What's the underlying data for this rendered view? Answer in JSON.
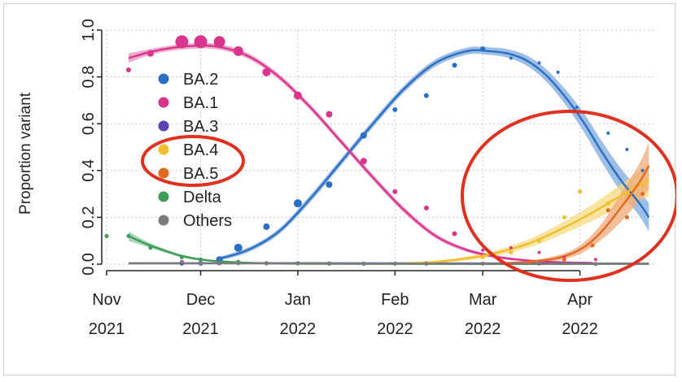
{
  "chart_data": {
    "type": "scatter",
    "title": "",
    "xlabel": "",
    "ylabel": "Proportion variant",
    "ylim": [
      0,
      1
    ],
    "xlim_days": [
      0,
      175
    ],
    "x_unit": "days since 1 Nov 2021",
    "y_ticks": [
      "0.0",
      "0.2",
      "0.4",
      "0.6",
      "0.8",
      "1.0"
    ],
    "y_tick_values": [
      0,
      0.2,
      0.4,
      0.6,
      0.8,
      1.0
    ],
    "x_ticks": [
      {
        "month": "Nov",
        "year": "2021",
        "day": 0
      },
      {
        "month": "Dec",
        "year": "2021",
        "day": 30
      },
      {
        "month": "Jan",
        "year": "2022",
        "day": 61
      },
      {
        "month": "Feb",
        "year": "2022",
        "day": 92
      },
      {
        "month": "Mar",
        "year": "2022",
        "day": 120
      },
      {
        "month": "Apr",
        "year": "2022",
        "day": 151
      }
    ],
    "legend_position": "upper-left",
    "series": [
      {
        "name": "BA.2",
        "color": "#2a6fc4",
        "band": "#7fa8dc",
        "points": [
          [
            24,
            0.001,
            1
          ],
          [
            30,
            0.004,
            1
          ],
          [
            36,
            0.02,
            1
          ],
          [
            42,
            0.07,
            1
          ],
          [
            51,
            0.16,
            1
          ],
          [
            61,
            0.26,
            1
          ],
          [
            71,
            0.34,
            1
          ],
          [
            82,
            0.55,
            1
          ],
          [
            92,
            0.66,
            1
          ],
          [
            102,
            0.72,
            1
          ],
          [
            111,
            0.85,
            1
          ],
          [
            120,
            0.92,
            1
          ],
          [
            129,
            0.88,
            1
          ],
          [
            138,
            0.86,
            1
          ],
          [
            144,
            0.82,
            1
          ],
          [
            150,
            0.67,
            1
          ],
          [
            160,
            0.56,
            1
          ],
          [
            166,
            0.49,
            1
          ],
          [
            171,
            0.4,
            1
          ]
        ],
        "curve": [
          [
            35,
            0.02
          ],
          [
            45,
            0.06
          ],
          [
            55,
            0.14
          ],
          [
            65,
            0.28
          ],
          [
            75,
            0.44
          ],
          [
            85,
            0.6
          ],
          [
            95,
            0.75
          ],
          [
            105,
            0.86
          ],
          [
            115,
            0.91
          ],
          [
            122,
            0.91
          ],
          [
            128,
            0.9
          ],
          [
            134,
            0.87
          ],
          [
            140,
            0.81
          ],
          [
            146,
            0.72
          ],
          [
            152,
            0.61
          ],
          [
            158,
            0.48
          ],
          [
            164,
            0.36
          ],
          [
            170,
            0.26
          ],
          [
            173,
            0.2
          ]
        ],
        "curve_halfwidth": [
          0.008,
          0.01,
          0.012,
          0.015,
          0.015,
          0.015,
          0.015,
          0.015,
          0.015,
          0.016,
          0.018,
          0.022,
          0.026,
          0.032,
          0.04,
          0.045,
          0.05,
          0.055,
          0.06
        ]
      },
      {
        "name": "BA.1",
        "color": "#d9358c",
        "band": "#eb8fbd",
        "points": [
          [
            7,
            0.83,
            1
          ],
          [
            14,
            0.9,
            1
          ],
          [
            24,
            0.95,
            1
          ],
          [
            30,
            0.95,
            1
          ],
          [
            36,
            0.95,
            1
          ],
          [
            42,
            0.91,
            1
          ],
          [
            51,
            0.82,
            1
          ],
          [
            61,
            0.72,
            1
          ],
          [
            71,
            0.64,
            1
          ],
          [
            82,
            0.44,
            1
          ],
          [
            92,
            0.31,
            1
          ],
          [
            102,
            0.24,
            1
          ],
          [
            111,
            0.13,
            1
          ],
          [
            120,
            0.06,
            1
          ],
          [
            129,
            0.07,
            1
          ],
          [
            138,
            0.05,
            1
          ],
          [
            146,
            0.03,
            1
          ],
          [
            156,
            0.02,
            1
          ]
        ],
        "curve": [
          [
            7,
            0.88
          ],
          [
            15,
            0.91
          ],
          [
            25,
            0.93
          ],
          [
            35,
            0.93
          ],
          [
            45,
            0.89
          ],
          [
            55,
            0.8
          ],
          [
            65,
            0.67
          ],
          [
            75,
            0.52
          ],
          [
            85,
            0.37
          ],
          [
            95,
            0.23
          ],
          [
            105,
            0.12
          ],
          [
            115,
            0.06
          ],
          [
            125,
            0.03
          ],
          [
            135,
            0.015
          ],
          [
            145,
            0.008
          ],
          [
            155,
            0.005
          ]
        ],
        "curve_halfwidth": [
          0.02,
          0.012,
          0.012,
          0.012,
          0.012,
          0.012,
          0.012,
          0.012,
          0.012,
          0.012,
          0.01,
          0.008,
          0.006,
          0.005,
          0.004,
          0.004
        ]
      },
      {
        "name": "BA.3",
        "color": "#5b3fb5",
        "band": "#9a88d4",
        "points": [
          [
            24,
            0.003,
            1
          ],
          [
            36,
            0.003,
            1
          ],
          [
            51,
            0.004,
            1
          ],
          [
            61,
            0.004,
            1
          ],
          [
            71,
            0.003,
            1
          ],
          [
            82,
            0.002,
            1
          ]
        ],
        "curve": [
          [
            7,
            0.003
          ],
          [
            60,
            0.004
          ],
          [
            120,
            0.003
          ],
          [
            173,
            0.002
          ]
        ],
        "curve_halfwidth": [
          0.002,
          0.002,
          0.002,
          0.002
        ]
      },
      {
        "name": "BA.4",
        "color": "#f2bd2c",
        "band": "#f7d980",
        "points": [
          [
            120,
            0.03,
            1
          ],
          [
            129,
            0.05,
            1
          ],
          [
            138,
            0.1,
            1
          ],
          [
            146,
            0.2,
            1
          ],
          [
            151,
            0.31,
            1
          ],
          [
            160,
            0.26,
            1
          ],
          [
            166,
            0.3,
            1
          ],
          [
            171,
            0.34,
            1
          ]
        ],
        "curve": [
          [
            95,
            0.003
          ],
          [
            105,
            0.01
          ],
          [
            115,
            0.025
          ],
          [
            125,
            0.05
          ],
          [
            135,
            0.09
          ],
          [
            145,
            0.15
          ],
          [
            155,
            0.22
          ],
          [
            165,
            0.3
          ],
          [
            173,
            0.36
          ]
        ],
        "curve_halfwidth": [
          0.003,
          0.005,
          0.008,
          0.012,
          0.018,
          0.025,
          0.035,
          0.05,
          0.07
        ]
      },
      {
        "name": "BA.5",
        "color": "#e06a22",
        "band": "#f0a877",
        "points": [
          [
            135,
            0.01,
            1
          ],
          [
            146,
            0.02,
            1
          ],
          [
            155,
            0.08,
            1
          ],
          [
            160,
            0.23,
            1
          ],
          [
            166,
            0.2,
            1
          ],
          [
            171,
            0.3,
            1
          ]
        ],
        "curve": [
          [
            125,
            0.004
          ],
          [
            135,
            0.01
          ],
          [
            145,
            0.03
          ],
          [
            152,
            0.07
          ],
          [
            158,
            0.14
          ],
          [
            164,
            0.24
          ],
          [
            170,
            0.35
          ],
          [
            173,
            0.42
          ]
        ],
        "curve_halfwidth": [
          0.003,
          0.006,
          0.012,
          0.02,
          0.035,
          0.06,
          0.08,
          0.1
        ]
      },
      {
        "name": "Delta",
        "color": "#3e9c5b",
        "band": "#8cc9a0",
        "points": [
          [
            0,
            0.12,
            1
          ],
          [
            7,
            0.12,
            1
          ],
          [
            14,
            0.07,
            1
          ],
          [
            24,
            0.03,
            1
          ],
          [
            30,
            0.02,
            1
          ],
          [
            36,
            0.01,
            1
          ],
          [
            42,
            0.01,
            1
          ]
        ],
        "curve": [
          [
            7,
            0.12
          ],
          [
            12,
            0.09
          ],
          [
            18,
            0.06
          ],
          [
            24,
            0.035
          ],
          [
            30,
            0.02
          ],
          [
            36,
            0.012
          ],
          [
            45,
            0.006
          ],
          [
            60,
            0.002
          ],
          [
            90,
            0.001
          ],
          [
            173,
            0.001
          ]
        ],
        "curve_halfwidth": [
          0.02,
          0.012,
          0.008,
          0.006,
          0.005,
          0.004,
          0.003,
          0.002,
          0.001,
          0.001
        ]
      },
      {
        "name": "Others",
        "color": "#7a7a7a",
        "band": "#b8b8b8",
        "points": [
          [
            24,
            0.01,
            1
          ],
          [
            30,
            0.005,
            1
          ],
          [
            36,
            0.004,
            1
          ],
          [
            42,
            0.004,
            1
          ],
          [
            51,
            0.003,
            1
          ],
          [
            61,
            0.003,
            1
          ],
          [
            71,
            0.002,
            1
          ],
          [
            82,
            0.002,
            1
          ],
          [
            92,
            0.002,
            1
          ],
          [
            102,
            0.002,
            1
          ],
          [
            120,
            0.002,
            1
          ],
          [
            138,
            0.002,
            1
          ],
          [
            156,
            0.001,
            1
          ]
        ],
        "curve": [
          [
            7,
            0.004
          ],
          [
            60,
            0.003
          ],
          [
            120,
            0.002
          ],
          [
            173,
            0.002
          ]
        ],
        "curve_halfwidth": [
          0.001,
          0.001,
          0.001,
          0.001
        ]
      }
    ],
    "point_sizes": {
      "BA.1": [
        3,
        4,
        8,
        8,
        7,
        6,
        5,
        5,
        4,
        4,
        3,
        3,
        3,
        2,
        2,
        2,
        2,
        2
      ],
      "BA.2": [
        2,
        3,
        4,
        5,
        4,
        5,
        4,
        4,
        3,
        3,
        3,
        3,
        2,
        2,
        2,
        2,
        2,
        2,
        2
      ]
    },
    "annotations": [
      {
        "type": "ellipse",
        "color": "#e03020",
        "label": "highlight BA.4 / BA.5 legend entries"
      },
      {
        "type": "ellipse",
        "color": "#e03020",
        "label": "highlight BA.4 / BA.5 growth"
      }
    ]
  }
}
